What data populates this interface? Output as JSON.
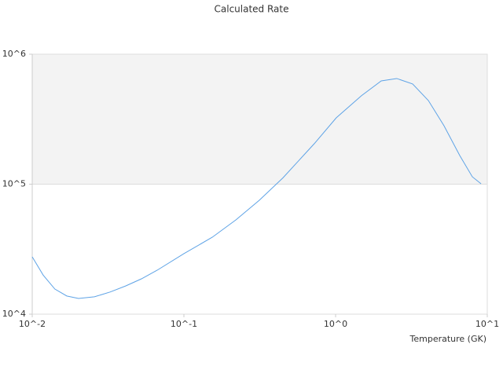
{
  "chart_data": {
    "type": "line",
    "title": "Calculated Rate",
    "x_label": "Temperature (GK)",
    "xscale": "log",
    "yscale": "log",
    "xlim": [
      0.01,
      10
    ],
    "ylim": [
      10000,
      1000000
    ],
    "xticks": [
      {
        "value": 0.01,
        "label": "10^-2"
      },
      {
        "value": 0.1,
        "label": "10^-1"
      },
      {
        "value": 1,
        "label": "10^0"
      },
      {
        "value": 10,
        "label": "10^1"
      }
    ],
    "yticks": [
      {
        "value": 10000,
        "label": "10^4"
      },
      {
        "value": 100000,
        "label": "10^5"
      },
      {
        "value": 1000000,
        "label": "10^6"
      }
    ],
    "highlight_band": [
      100000,
      1000000
    ],
    "band_color": "#f3f3f3",
    "series": [
      {
        "name": "Calculated Rate",
        "color": "#5ea3e6",
        "x": [
          0.01,
          0.0118,
          0.0141,
          0.0169,
          0.0202,
          0.0257,
          0.0326,
          0.0414,
          0.0525,
          0.0667,
          0.1,
          0.154,
          0.22,
          0.314,
          0.45,
          0.724,
          1.01,
          1.48,
          2.0,
          2.53,
          3.22,
          4.09,
          5.18,
          6.59,
          7.97,
          9.1
        ],
        "values": [
          27600,
          20000,
          15600,
          13800,
          13200,
          13600,
          14800,
          16500,
          18700,
          21800,
          29200,
          39100,
          53100,
          75200,
          112000,
          205000,
          324000,
          479000,
          623000,
          650000,
          590000,
          440000,
          282000,
          166000,
          114000,
          100700
        ]
      }
    ]
  }
}
